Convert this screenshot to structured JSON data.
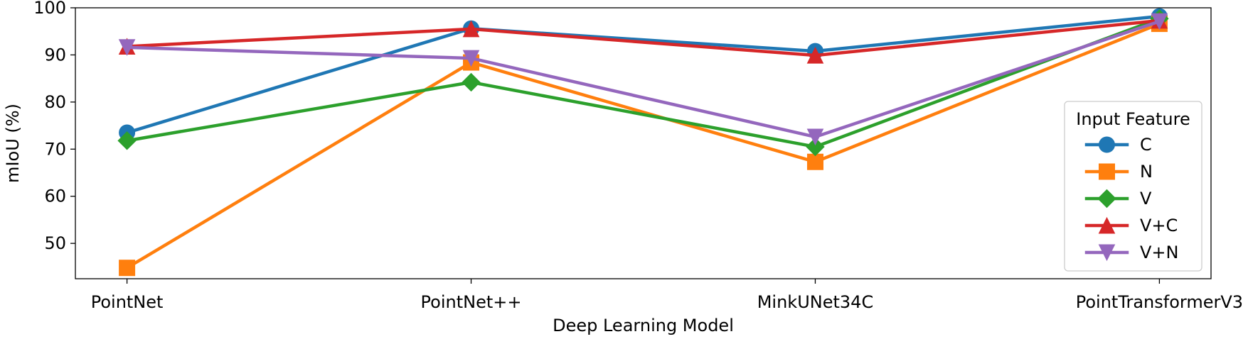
{
  "chart_data": {
    "type": "line",
    "title": "",
    "xlabel": "Deep Learning Model",
    "ylabel": "mIoU (%)",
    "categories": [
      "PointNet",
      "PointNet++",
      "MinkUNet34C",
      "PointTransformerV3"
    ],
    "ylim": [
      42.5,
      100
    ],
    "yticks": [
      50,
      60,
      70,
      80,
      90,
      100
    ],
    "grid": false,
    "legend": {
      "title": "Input Feature",
      "placement": "center-right"
    },
    "series": [
      {
        "name": "C",
        "marker": "circle",
        "color": "#1f77b4",
        "values": [
          73.5,
          95.6,
          90.8,
          98.2
        ]
      },
      {
        "name": "N",
        "marker": "square",
        "color": "#ff7f0e",
        "values": [
          44.8,
          88.4,
          67.3,
          96.6
        ]
      },
      {
        "name": "V",
        "marker": "diamond",
        "color": "#2ca02c",
        "values": [
          71.8,
          84.2,
          70.5,
          97.7
        ]
      },
      {
        "name": "V+C",
        "marker": "triangle-up",
        "color": "#d62728",
        "values": [
          91.8,
          95.5,
          89.9,
          97.3
        ]
      },
      {
        "name": "V+N",
        "marker": "triangle-down",
        "color": "#9467bd",
        "values": [
          91.6,
          89.3,
          72.6,
          97.1
        ]
      }
    ]
  }
}
